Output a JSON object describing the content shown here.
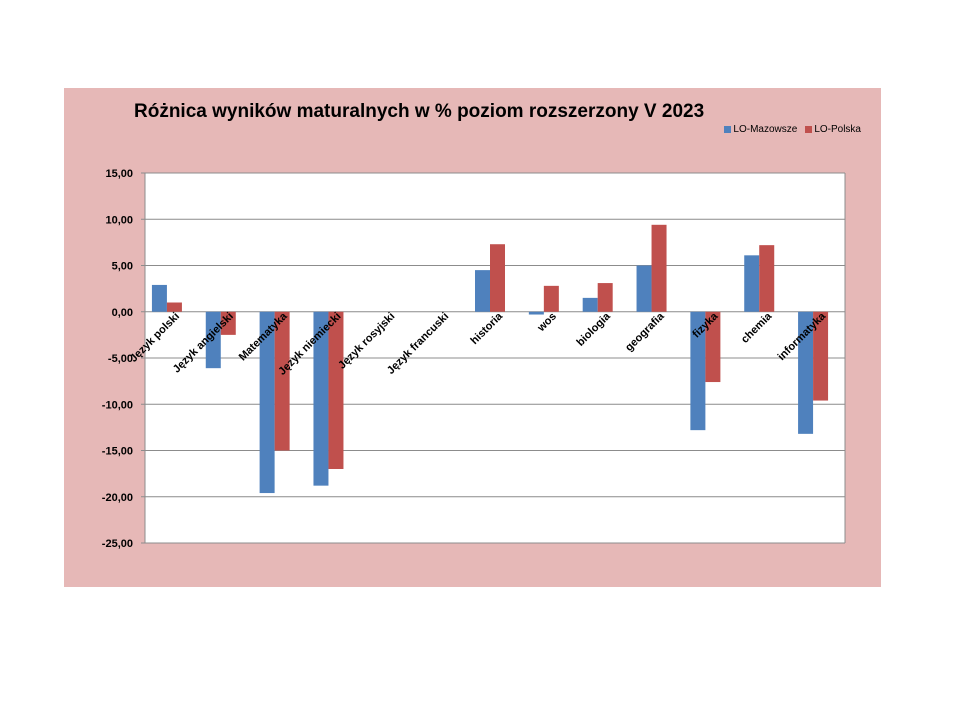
{
  "chart_data": {
    "type": "bar",
    "title": "Różnica wyników maturalnych w % poziom rozszerzony V 2023",
    "xlabel": "",
    "ylabel": "",
    "ylim": [
      -25,
      15
    ],
    "yticks": [
      15,
      10,
      5,
      0,
      -5,
      -10,
      -15,
      -20,
      -25
    ],
    "ytick_labels": [
      "15,00",
      "10,00",
      "5,00",
      "0,00",
      "-5,00",
      "-10,00",
      "-15,00",
      "-20,00",
      "-25,00"
    ],
    "grid": true,
    "legend_position": "top-right",
    "categories": [
      "Język polski",
      "Język angielski",
      "Matematyka",
      "Język niemiecki",
      "Język rosyjski",
      "Język francuski",
      "historia",
      "wos",
      "biologia",
      "geografia",
      "fizyka",
      "chemia",
      "informatyka"
    ],
    "series": [
      {
        "name": "LO-Mazowsze",
        "color": "#4f81bd",
        "values": [
          2.9,
          -6.1,
          -19.6,
          -18.8,
          0,
          0,
          4.5,
          -0.3,
          1.5,
          5.0,
          -12.8,
          6.1,
          -13.2
        ]
      },
      {
        "name": "LO-Polska",
        "color": "#c0504d",
        "values": [
          1.0,
          -2.5,
          -15.0,
          -17.0,
          0,
          0,
          7.3,
          2.8,
          3.1,
          9.4,
          -7.6,
          7.2,
          -9.6
        ]
      }
    ]
  }
}
